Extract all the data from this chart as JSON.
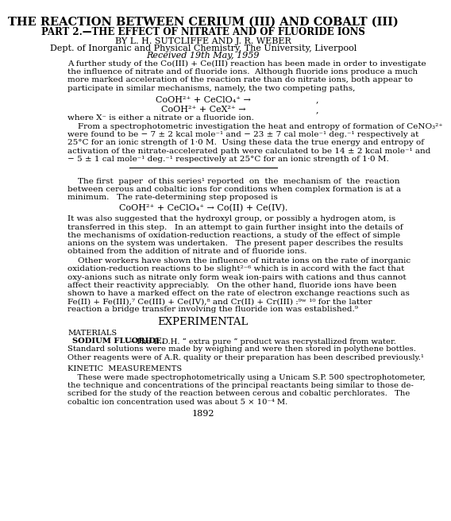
{
  "bg_color": "#ffffff",
  "title1": "THE REACTION BETWEEN CERIUM (III) AND COBALT (III)",
  "title2": "PART 2.—THE EFFECT OF NITRATE AND OF FLUORIDE IONS",
  "authors": "BY L. H. SUTCLIFFE AND J. R. WEBER",
  "affiliation": "Dept. of Inorganic and Physical Chemistry, The University, Liverpool",
  "received": "Received 19th May, 1959",
  "abstract": "A further study of the Co(III) + Ce(III) reaction has been made in order to investigate\nthe influence of nitrate and of fluoride ions.  Although fluoride ions produce a much\nmore marked acceleration of the reaction rate than do nitrate ions, both appear to\nparticipate in similar mechanisms, namely, the two competing paths,",
  "eq1": "CoOH²⁺ + CeClO₄⁺ →",
  "eq1_comma": ",",
  "eq2": "CoOH²⁺ + CeX²⁺ →",
  "eq2_comma": ",",
  "where_text": "where X⁻ is either a nitrate or a fluoride ion.",
  "para1": "    From a spectrophotometric investigation the heat and entropy of formation of CeNO₃²⁺\nwere found to be − 7 ± 2 kcal mole⁻¹ and − 23 ± 7 cal mole⁻¹ deg.⁻¹ respectively at\n25°C for an ionic strength of 1·0 M.  Using these data the true energy and entropy of\nactivation of the nitrate-accelerated path were calculated to be 14 ± 2 kcal mole⁻¹ and\n− 5 ± 1 cal mole⁻¹ deg.⁻¹ respectively at 25°C for an ionic strength of 1·0 M.",
  "para2": "    The first  paper  of this series¹ reported  on  the  mechanism of  the  reaction\nbetween cerous and cobaltic ions for conditions when complex formation is at a\nminimum.   The rate-determining step proposed is",
  "eq3": "CoOH²⁺ + CeClO₄⁺ → Co(II) + Ce(IV).",
  "para3": "It was also suggested that the hydroxyl group, or possibly a hydrogen atom, is\ntransferred in this step.   In an attempt to gain further insight into the details of\nthe mechanisms of oxidation-reduction reactions, a study of the effect of simple\nanions on the system was undertaken.   The present paper describes the results\nobtained from the addition of nitrate and of fluoride ions.",
  "para4": "    Other workers have shown the influence of nitrate ions on the rate of inorganic\noxidation-reduction reactions to be slight²⁻⁶ which is in accord with the fact that\noxy-anions such as nitrate only form weak ion-pairs with cations and thus cannot\naffect their reactivity appreciably.   On the other hand, fluoride ions have been\nshown to have a marked effect on the rate of electron exchange reactions such as\nFe(II) + Fe(III),⁷ Ce(III) + Ce(IV),⁸ and Cr(II) + Cr(III) :⁹ʷ ¹⁰ for the latter\nreaction a bridge transfer involving the fluoride ion was established.⁹",
  "exp_heading": "EXPERIMENTAL",
  "mat_heading": "MATERIALS",
  "mat_subhead": "SODIUM FLUORIDE.",
  "mat_text": "—The B.D.H. “ extra pure ” product was recrystallized from water.\nStandard solutions were made by weighing and were then stored in polythene bottles.\nOther reagents were of A.R. quality or their preparation has been described previously.¹",
  "kin_heading": "KINETIC  MEASUREMENTS",
  "kin_text": "    These were made spectrophotometrically using a Unicam S.P. 500 spectrophotometer,\nthe technique and concentrations of the principal reactants being similar to those de-\nscribed for the study of the reaction between cerous and cobaltic perchlorates.   The\ncobaltic ion concentration used was about 5 × 10⁻⁴ M.",
  "page_num": "1892"
}
